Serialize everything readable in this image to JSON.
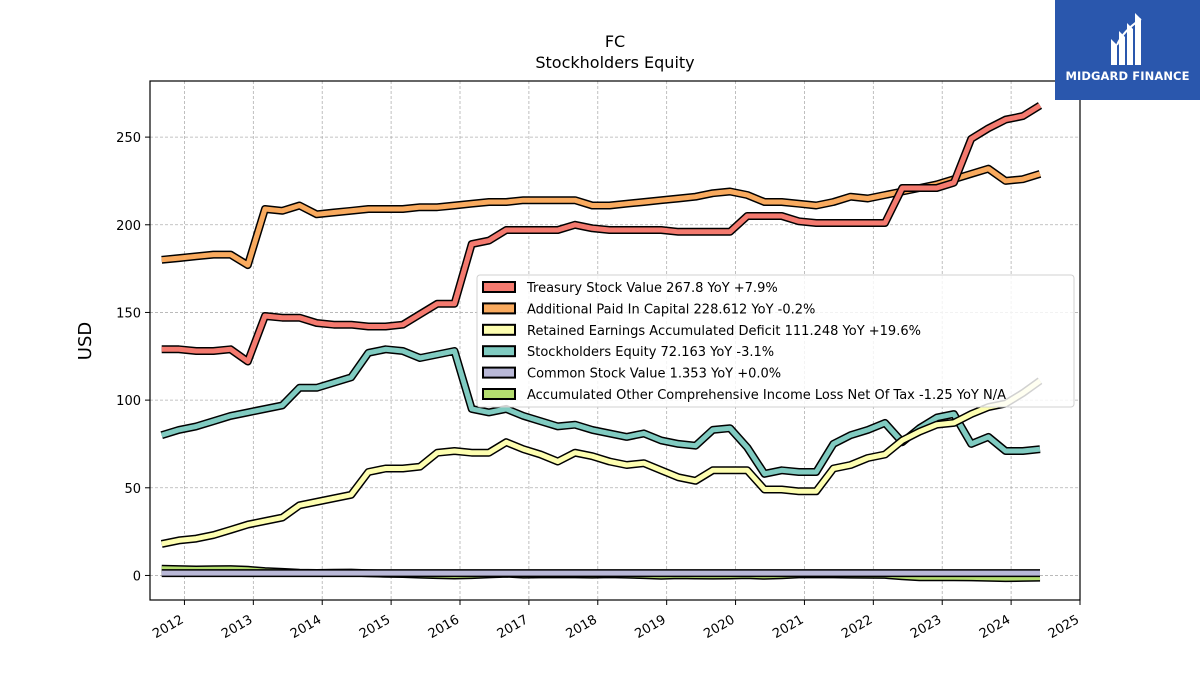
{
  "logo": {
    "text": "MIDGARD FINANCE"
  },
  "chart_data": {
    "type": "line",
    "title": "FC",
    "subtitle": "Stockholders  Equity",
    "ylabel": "USD",
    "xlabel": "",
    "xlim": [
      2011.5,
      2025.0
    ],
    "ylim": [
      -14,
      282
    ],
    "grid": true,
    "legend_position": "center-right",
    "x_ticks": [
      "2012",
      "2013",
      "2014",
      "2015",
      "2016",
      "2017",
      "2018",
      "2019",
      "2020",
      "2021",
      "2022",
      "2023",
      "2024",
      "2025"
    ],
    "y_ticks": [
      0,
      50,
      100,
      150,
      200,
      250
    ],
    "x": [
      2011.67,
      2011.92,
      2012.17,
      2012.42,
      2012.67,
      2012.92,
      2013.17,
      2013.42,
      2013.67,
      2013.92,
      2014.17,
      2014.42,
      2014.67,
      2014.92,
      2015.17,
      2015.42,
      2015.67,
      2015.92,
      2016.17,
      2016.42,
      2016.67,
      2016.92,
      2017.17,
      2017.42,
      2017.67,
      2017.92,
      2018.17,
      2018.42,
      2018.67,
      2018.92,
      2019.17,
      2019.42,
      2019.67,
      2019.92,
      2020.17,
      2020.42,
      2020.67,
      2020.92,
      2021.17,
      2021.42,
      2021.67,
      2021.92,
      2022.17,
      2022.42,
      2022.67,
      2022.92,
      2023.17,
      2023.42,
      2023.67,
      2023.92,
      2024.17,
      2024.42
    ],
    "series": [
      {
        "name": "Treasury Stock Value",
        "legend": "Treasury Stock Value  267.8 YoY +7.9%",
        "color": "#f47a6f",
        "values": [
          129,
          129,
          128,
          128,
          129,
          122,
          148,
          147,
          147,
          144,
          143,
          143,
          142,
          142,
          143,
          149,
          155,
          155,
          189,
          191,
          197,
          197,
          197,
          197,
          200,
          198,
          197,
          197,
          197,
          197,
          196,
          196,
          196,
          196,
          205,
          205,
          205,
          202,
          201,
          201,
          201,
          201,
          201,
          221,
          221,
          221,
          224,
          249,
          255,
          260,
          262,
          268
        ]
      },
      {
        "name": "Additional Paid In Capital",
        "legend": "Additional Paid In Capital  228.612 YoY -0.2%",
        "color": "#f9aa5e",
        "values": [
          180,
          181,
          182,
          183,
          183,
          177,
          209,
          208,
          211,
          206,
          207,
          208,
          209,
          209,
          209,
          210,
          210,
          211,
          212,
          213,
          213,
          214,
          214,
          214,
          214,
          211,
          211,
          212,
          213,
          214,
          215,
          216,
          218,
          219,
          217,
          213,
          213,
          212,
          211,
          213,
          216,
          215,
          217,
          219,
          221,
          223,
          226,
          229,
          232,
          225,
          226,
          229
        ]
      },
      {
        "name": "Retained Earnings Accumulated Deficit",
        "legend": "Retained Earnings Accumulated Deficit  111.248 YoY +19.6%",
        "color": "#fdfeb0",
        "values": [
          18,
          20,
          21,
          23,
          26,
          29,
          31,
          33,
          40,
          42,
          44,
          46,
          59,
          61,
          61,
          62,
          70,
          71,
          70,
          70,
          76,
          72,
          69,
          65,
          70,
          68,
          65,
          63,
          64,
          60,
          56,
          54,
          60,
          60,
          60,
          49,
          49,
          48,
          48,
          61,
          63,
          67,
          69,
          77,
          82,
          86,
          87,
          92,
          96,
          98,
          104,
          111
        ]
      },
      {
        "name": "Stockholders Equity",
        "legend": "Stockholders Equity  72.163 YoY -3.1%",
        "color": "#80cbc1",
        "values": [
          80,
          83,
          85,
          88,
          91,
          93,
          95,
          97,
          107,
          107,
          110,
          113,
          127,
          129,
          128,
          124,
          126,
          128,
          95,
          93,
          95,
          91,
          88,
          85,
          86,
          83,
          81,
          79,
          81,
          77,
          75,
          74,
          83,
          84,
          73,
          58,
          60,
          59,
          59,
          75,
          80,
          83,
          87,
          76,
          84,
          90,
          92,
          75,
          79,
          71,
          71,
          72
        ]
      },
      {
        "name": "Common Stock Value",
        "legend": "Common Stock Value  1.353 YoY +0.0%",
        "color": "#b9b8d7",
        "values": [
          1.35,
          1.35,
          1.35,
          1.35,
          1.35,
          1.35,
          1.35,
          1.35,
          1.35,
          1.35,
          1.35,
          1.35,
          1.35,
          1.35,
          1.35,
          1.35,
          1.35,
          1.35,
          1.35,
          1.35,
          1.35,
          1.35,
          1.35,
          1.35,
          1.35,
          1.35,
          1.35,
          1.35,
          1.35,
          1.35,
          1.35,
          1.35,
          1.35,
          1.35,
          1.35,
          1.35,
          1.35,
          1.35,
          1.35,
          1.35,
          1.35,
          1.35,
          1.35,
          1.35,
          1.35,
          1.35,
          1.35,
          1.35,
          1.35,
          1.35,
          1.35,
          1.35
        ]
      },
      {
        "name": "Accumulated Other Comprehensive Income Loss Net Of Tax",
        "legend": "Accumulated Other Comprehensive Income Loss Net Of Tax  -1.25 YoY N/A",
        "color": "#b4dd6f",
        "values": [
          3.8,
          3.6,
          3.4,
          3.5,
          3.6,
          3.2,
          2.5,
          2.0,
          1.5,
          1.4,
          1.5,
          1.6,
          1.3,
          1.0,
          0.8,
          0.5,
          0.2,
          0.0,
          0.2,
          0.6,
          1.0,
          0.5,
          0.6,
          0.7,
          0.6,
          0.5,
          0.7,
          0.5,
          0.2,
          -0.2,
          0.1,
          0.0,
          -0.1,
          0.0,
          0.2,
          -0.2,
          0.1,
          0.6,
          0.7,
          0.6,
          0.5,
          0.4,
          0.3,
          -0.5,
          -1.0,
          -1.0,
          -1.0,
          -1.1,
          -1.3,
          -1.5,
          -1.4,
          -1.25
        ]
      }
    ]
  }
}
